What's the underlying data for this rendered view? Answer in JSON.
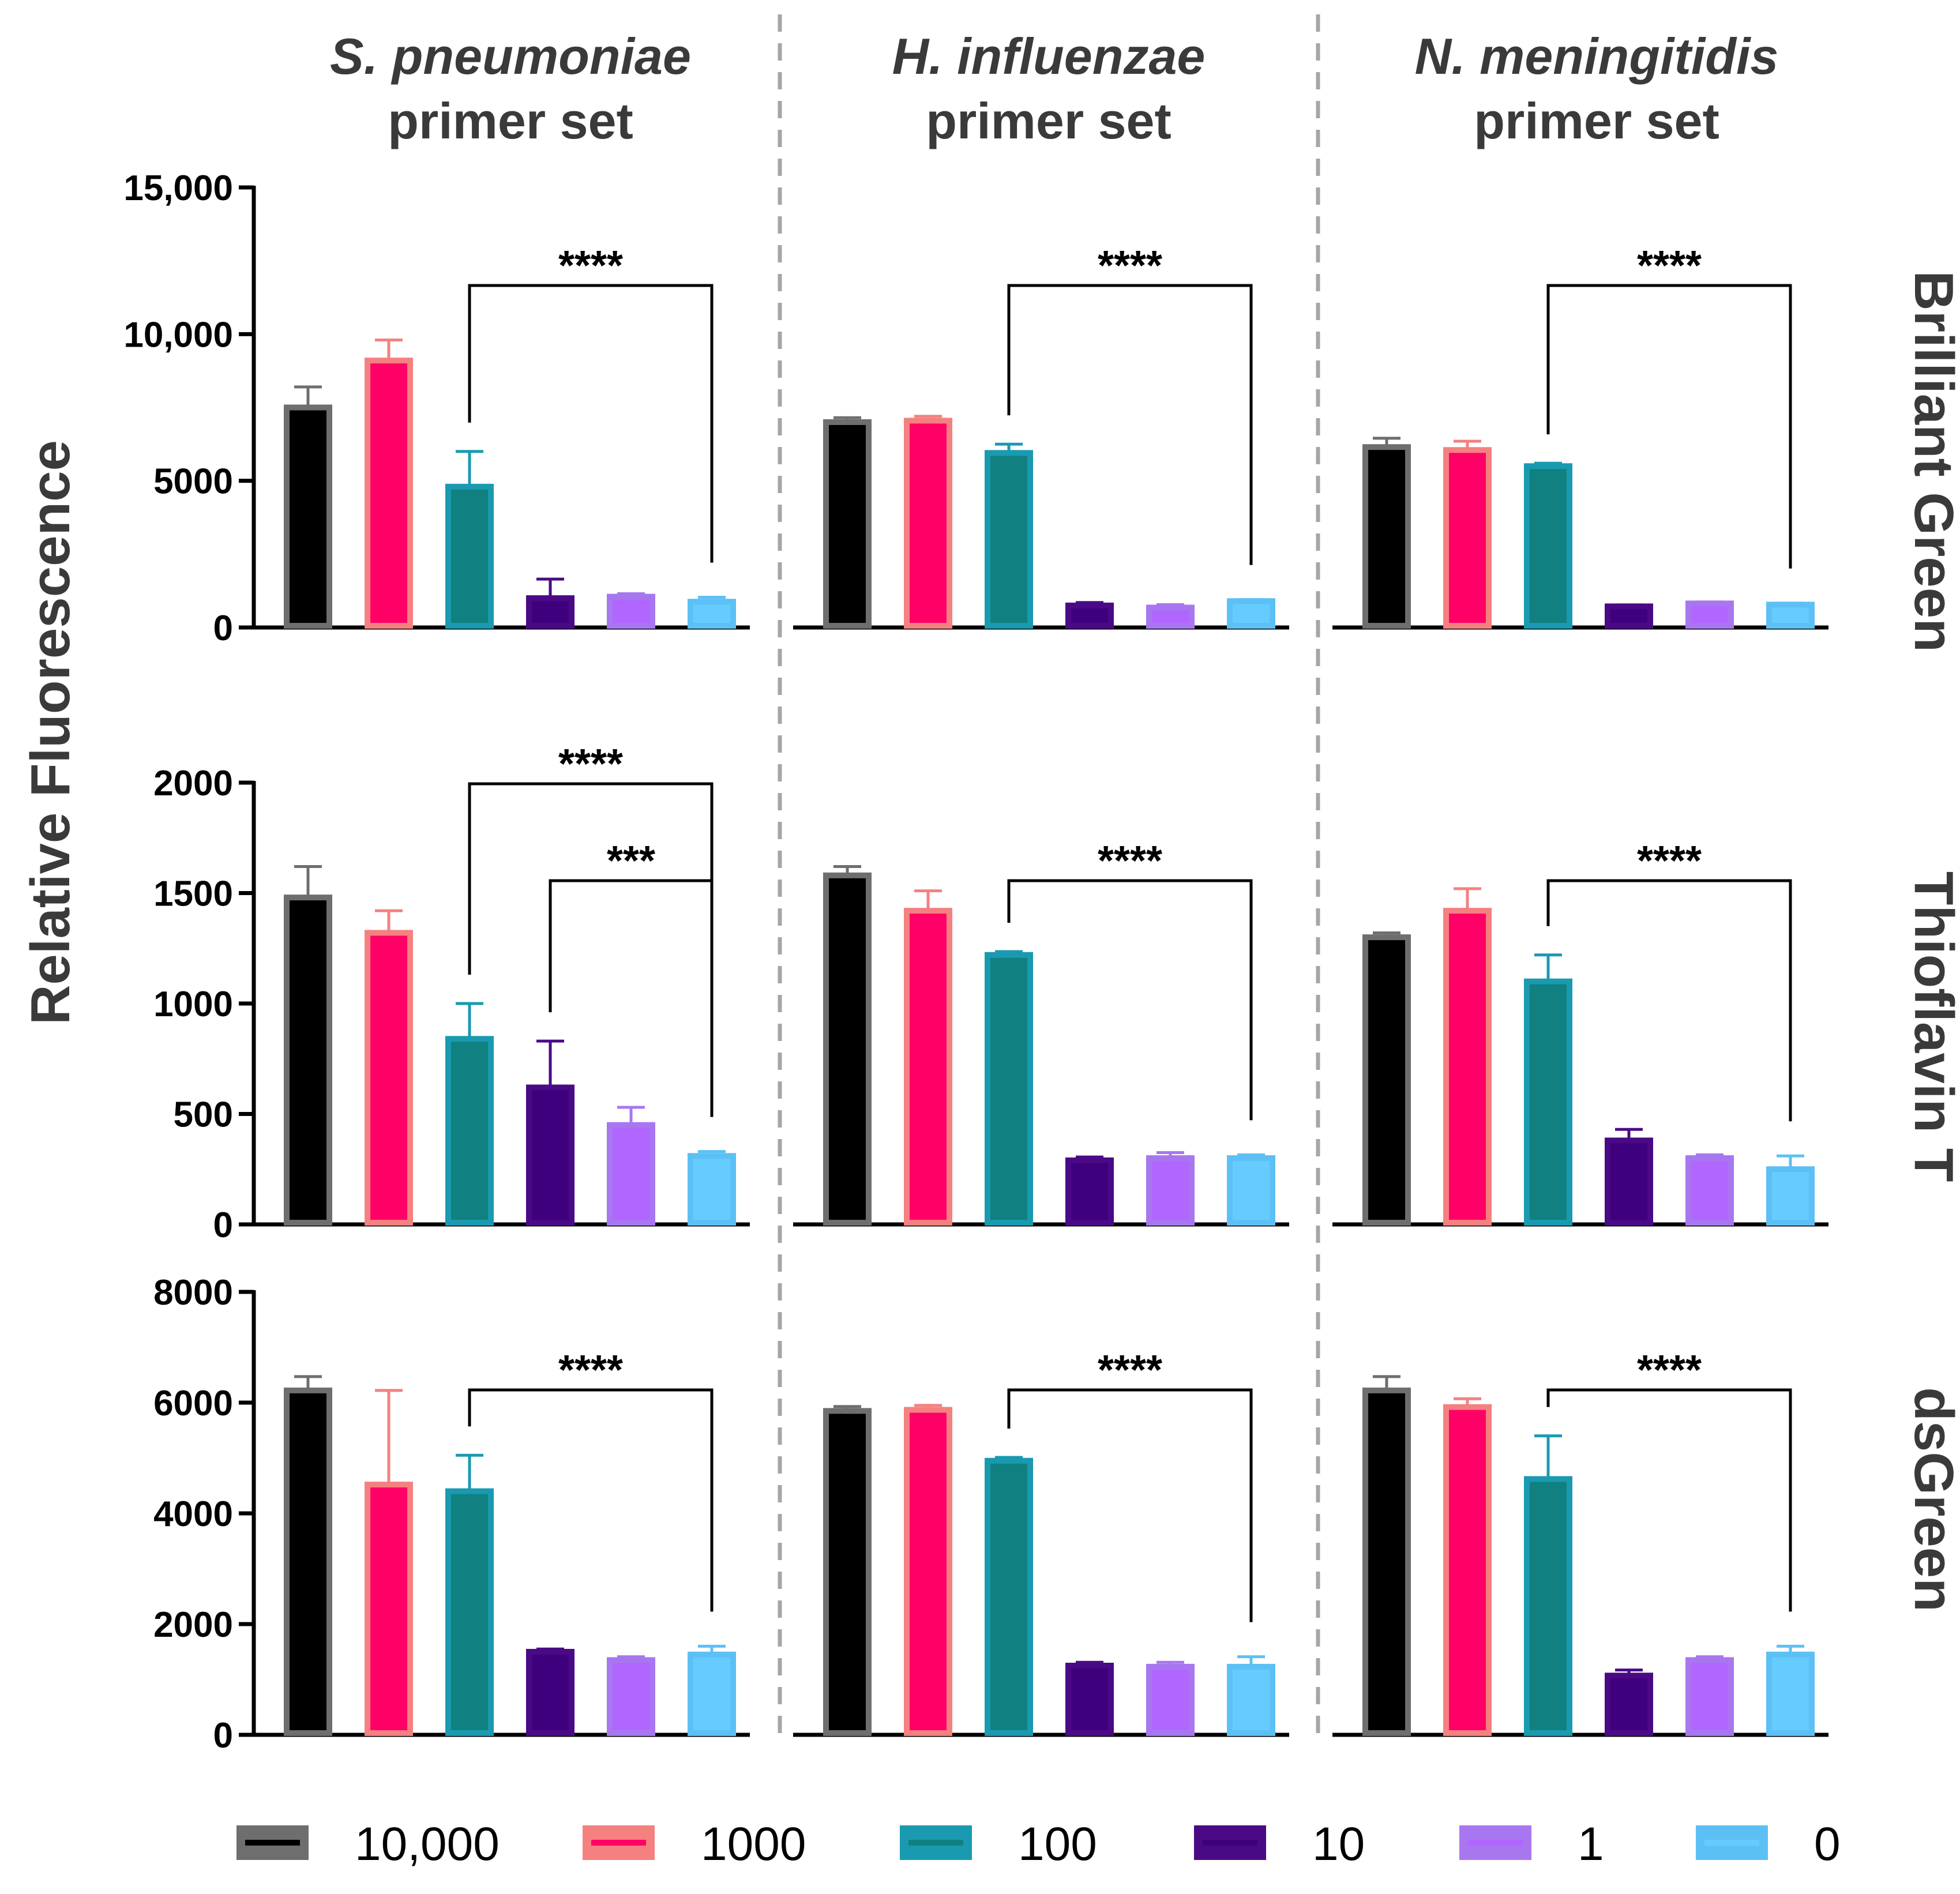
{
  "chart_data": {
    "type": "bar",
    "y_axis_title": "Relative Fluorescence",
    "column_titles": [
      {
        "italic": "S. pneumoniae",
        "plain": "primer set"
      },
      {
        "italic": "H. influenzae",
        "plain": "primer set"
      },
      {
        "italic": "N. meningitidis",
        "plain": "primer set"
      }
    ],
    "legend": [
      {
        "label": "10,000",
        "fill": "#000000",
        "edge": "#6e6e6e"
      },
      {
        "label": "1000",
        "fill": "#ff0066",
        "edge": "#f58080"
      },
      {
        "label": "100",
        "fill": "#108080",
        "edge": "#1a9ab0"
      },
      {
        "label": "10",
        "fill": "#3f007d",
        "edge": "#4a0a85"
      },
      {
        "label": "1",
        "fill": "#b066ff",
        "edge": "#a877f0"
      },
      {
        "label": "0",
        "fill": "#66ccff",
        "edge": "#5cc0f5"
      }
    ],
    "rows": [
      {
        "dye": "Brilliant Green",
        "ylim": [
          0,
          15000
        ],
        "ticks": [
          0,
          5000,
          10000,
          15000
        ],
        "tick_labels": [
          "0",
          "5000",
          "10,000",
          "15,000"
        ],
        "panels": [
          {
            "values": [
              7500,
              9100,
              4800,
              1000,
              1050,
              880
            ],
            "errors": [
              700,
              700,
              1200,
              650,
              100,
              150
            ],
            "brackets": [
              {
                "label": "****",
                "from": 2,
                "to": 5,
                "level": 0
              }
            ]
          },
          {
            "values": [
              7000,
              7050,
              5950,
              750,
              680,
              900
            ],
            "errors": [
              150,
              150,
              300,
              100,
              100,
              50
            ],
            "brackets": [
              {
                "label": "****",
                "from": 2,
                "to": 5,
                "level": 0
              }
            ]
          },
          {
            "values": [
              6150,
              6050,
              5500,
              720,
              820,
              780
            ],
            "errors": [
              300,
              300,
              100,
              50,
              50,
              50
            ],
            "brackets": [
              {
                "label": "****",
                "from": 2,
                "to": 5,
                "level": 0
              }
            ]
          }
        ]
      },
      {
        "dye": "Thioflavin T",
        "ylim": [
          0,
          2000
        ],
        "ticks": [
          0,
          500,
          1000,
          1500,
          2000
        ],
        "tick_labels": [
          "0",
          "500",
          "1000",
          "1500",
          "2000"
        ],
        "panels": [
          {
            "values": [
              1480,
              1320,
              840,
              620,
              450,
              310
            ],
            "errors": [
              140,
              100,
              160,
              210,
              80,
              20
            ],
            "brackets": [
              {
                "label": "****",
                "from": 2,
                "to": 5,
                "level": 1
              },
              {
                "label": "***",
                "from": 3,
                "to": 5,
                "level": 0
              }
            ]
          },
          {
            "values": [
              1580,
              1420,
              1220,
              290,
              300,
              300
            ],
            "errors": [
              40,
              90,
              15,
              15,
              25,
              15
            ],
            "brackets": [
              {
                "label": "****",
                "from": 2,
                "to": 5,
                "level": 0
              }
            ]
          },
          {
            "values": [
              1300,
              1420,
              1100,
              380,
              300,
              250
            ],
            "errors": [
              20,
              100,
              120,
              50,
              15,
              60
            ],
            "brackets": [
              {
                "label": "****",
                "from": 2,
                "to": 5,
                "level": 0
              }
            ]
          }
        ]
      },
      {
        "dye": "dsGreen",
        "ylim": [
          0,
          8000
        ],
        "ticks": [
          0,
          2000,
          4000,
          6000,
          8000
        ],
        "tick_labels": [
          "0",
          "2000",
          "4000",
          "6000",
          "8000"
        ],
        "panels": [
          {
            "values": [
              6220,
              4520,
              4400,
              1500,
              1350,
              1450
            ],
            "errors": [
              250,
              1700,
              650,
              50,
              60,
              150
            ],
            "brackets": [
              {
                "label": "****",
                "from": 2,
                "to": 5,
                "level": 0
              }
            ]
          },
          {
            "values": [
              5850,
              5870,
              4950,
              1250,
              1230,
              1230
            ],
            "errors": [
              80,
              80,
              60,
              60,
              80,
              180
            ],
            "brackets": [
              {
                "label": "****",
                "from": 2,
                "to": 5,
                "level": 0
              }
            ]
          },
          {
            "values": [
              6220,
              5920,
              4620,
              1070,
              1350,
              1450
            ],
            "errors": [
              250,
              150,
              780,
              100,
              60,
              150
            ],
            "brackets": [
              {
                "label": "****",
                "from": 2,
                "to": 5,
                "level": 0
              }
            ]
          }
        ]
      }
    ]
  }
}
